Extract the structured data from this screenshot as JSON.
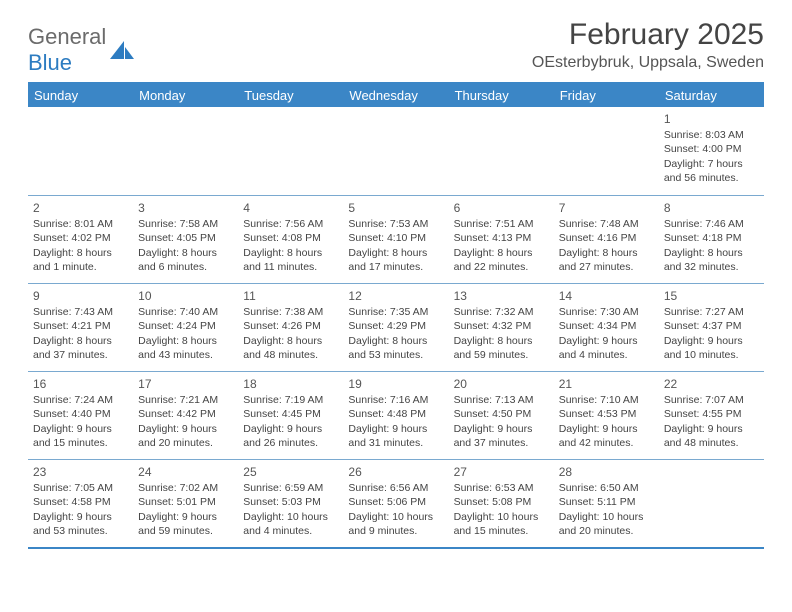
{
  "logo": {
    "word1": "General",
    "word2": "Blue",
    "shape_color": "#2d7cc1"
  },
  "title": "February 2025",
  "subtitle": "OEsterbybruk, Uppsala, Sweden",
  "header_bg": "#3b86c6",
  "weekdays": [
    "Sunday",
    "Monday",
    "Tuesday",
    "Wednesday",
    "Thursday",
    "Friday",
    "Saturday"
  ],
  "weeks": [
    [
      null,
      null,
      null,
      null,
      null,
      null,
      {
        "n": "1",
        "sunrise": "Sunrise: 8:03 AM",
        "sunset": "Sunset: 4:00 PM",
        "daylight": "Daylight: 7 hours and 56 minutes."
      }
    ],
    [
      {
        "n": "2",
        "sunrise": "Sunrise: 8:01 AM",
        "sunset": "Sunset: 4:02 PM",
        "daylight": "Daylight: 8 hours and 1 minute."
      },
      {
        "n": "3",
        "sunrise": "Sunrise: 7:58 AM",
        "sunset": "Sunset: 4:05 PM",
        "daylight": "Daylight: 8 hours and 6 minutes."
      },
      {
        "n": "4",
        "sunrise": "Sunrise: 7:56 AM",
        "sunset": "Sunset: 4:08 PM",
        "daylight": "Daylight: 8 hours and 11 minutes."
      },
      {
        "n": "5",
        "sunrise": "Sunrise: 7:53 AM",
        "sunset": "Sunset: 4:10 PM",
        "daylight": "Daylight: 8 hours and 17 minutes."
      },
      {
        "n": "6",
        "sunrise": "Sunrise: 7:51 AM",
        "sunset": "Sunset: 4:13 PM",
        "daylight": "Daylight: 8 hours and 22 minutes."
      },
      {
        "n": "7",
        "sunrise": "Sunrise: 7:48 AM",
        "sunset": "Sunset: 4:16 PM",
        "daylight": "Daylight: 8 hours and 27 minutes."
      },
      {
        "n": "8",
        "sunrise": "Sunrise: 7:46 AM",
        "sunset": "Sunset: 4:18 PM",
        "daylight": "Daylight: 8 hours and 32 minutes."
      }
    ],
    [
      {
        "n": "9",
        "sunrise": "Sunrise: 7:43 AM",
        "sunset": "Sunset: 4:21 PM",
        "daylight": "Daylight: 8 hours and 37 minutes."
      },
      {
        "n": "10",
        "sunrise": "Sunrise: 7:40 AM",
        "sunset": "Sunset: 4:24 PM",
        "daylight": "Daylight: 8 hours and 43 minutes."
      },
      {
        "n": "11",
        "sunrise": "Sunrise: 7:38 AM",
        "sunset": "Sunset: 4:26 PM",
        "daylight": "Daylight: 8 hours and 48 minutes."
      },
      {
        "n": "12",
        "sunrise": "Sunrise: 7:35 AM",
        "sunset": "Sunset: 4:29 PM",
        "daylight": "Daylight: 8 hours and 53 minutes."
      },
      {
        "n": "13",
        "sunrise": "Sunrise: 7:32 AM",
        "sunset": "Sunset: 4:32 PM",
        "daylight": "Daylight: 8 hours and 59 minutes."
      },
      {
        "n": "14",
        "sunrise": "Sunrise: 7:30 AM",
        "sunset": "Sunset: 4:34 PM",
        "daylight": "Daylight: 9 hours and 4 minutes."
      },
      {
        "n": "15",
        "sunrise": "Sunrise: 7:27 AM",
        "sunset": "Sunset: 4:37 PM",
        "daylight": "Daylight: 9 hours and 10 minutes."
      }
    ],
    [
      {
        "n": "16",
        "sunrise": "Sunrise: 7:24 AM",
        "sunset": "Sunset: 4:40 PM",
        "daylight": "Daylight: 9 hours and 15 minutes."
      },
      {
        "n": "17",
        "sunrise": "Sunrise: 7:21 AM",
        "sunset": "Sunset: 4:42 PM",
        "daylight": "Daylight: 9 hours and 20 minutes."
      },
      {
        "n": "18",
        "sunrise": "Sunrise: 7:19 AM",
        "sunset": "Sunset: 4:45 PM",
        "daylight": "Daylight: 9 hours and 26 minutes."
      },
      {
        "n": "19",
        "sunrise": "Sunrise: 7:16 AM",
        "sunset": "Sunset: 4:48 PM",
        "daylight": "Daylight: 9 hours and 31 minutes."
      },
      {
        "n": "20",
        "sunrise": "Sunrise: 7:13 AM",
        "sunset": "Sunset: 4:50 PM",
        "daylight": "Daylight: 9 hours and 37 minutes."
      },
      {
        "n": "21",
        "sunrise": "Sunrise: 7:10 AM",
        "sunset": "Sunset: 4:53 PM",
        "daylight": "Daylight: 9 hours and 42 minutes."
      },
      {
        "n": "22",
        "sunrise": "Sunrise: 7:07 AM",
        "sunset": "Sunset: 4:55 PM",
        "daylight": "Daylight: 9 hours and 48 minutes."
      }
    ],
    [
      {
        "n": "23",
        "sunrise": "Sunrise: 7:05 AM",
        "sunset": "Sunset: 4:58 PM",
        "daylight": "Daylight: 9 hours and 53 minutes."
      },
      {
        "n": "24",
        "sunrise": "Sunrise: 7:02 AM",
        "sunset": "Sunset: 5:01 PM",
        "daylight": "Daylight: 9 hours and 59 minutes."
      },
      {
        "n": "25",
        "sunrise": "Sunrise: 6:59 AM",
        "sunset": "Sunset: 5:03 PM",
        "daylight": "Daylight: 10 hours and 4 minutes."
      },
      {
        "n": "26",
        "sunrise": "Sunrise: 6:56 AM",
        "sunset": "Sunset: 5:06 PM",
        "daylight": "Daylight: 10 hours and 9 minutes."
      },
      {
        "n": "27",
        "sunrise": "Sunrise: 6:53 AM",
        "sunset": "Sunset: 5:08 PM",
        "daylight": "Daylight: 10 hours and 15 minutes."
      },
      {
        "n": "28",
        "sunrise": "Sunrise: 6:50 AM",
        "sunset": "Sunset: 5:11 PM",
        "daylight": "Daylight: 10 hours and 20 minutes."
      },
      null
    ]
  ]
}
